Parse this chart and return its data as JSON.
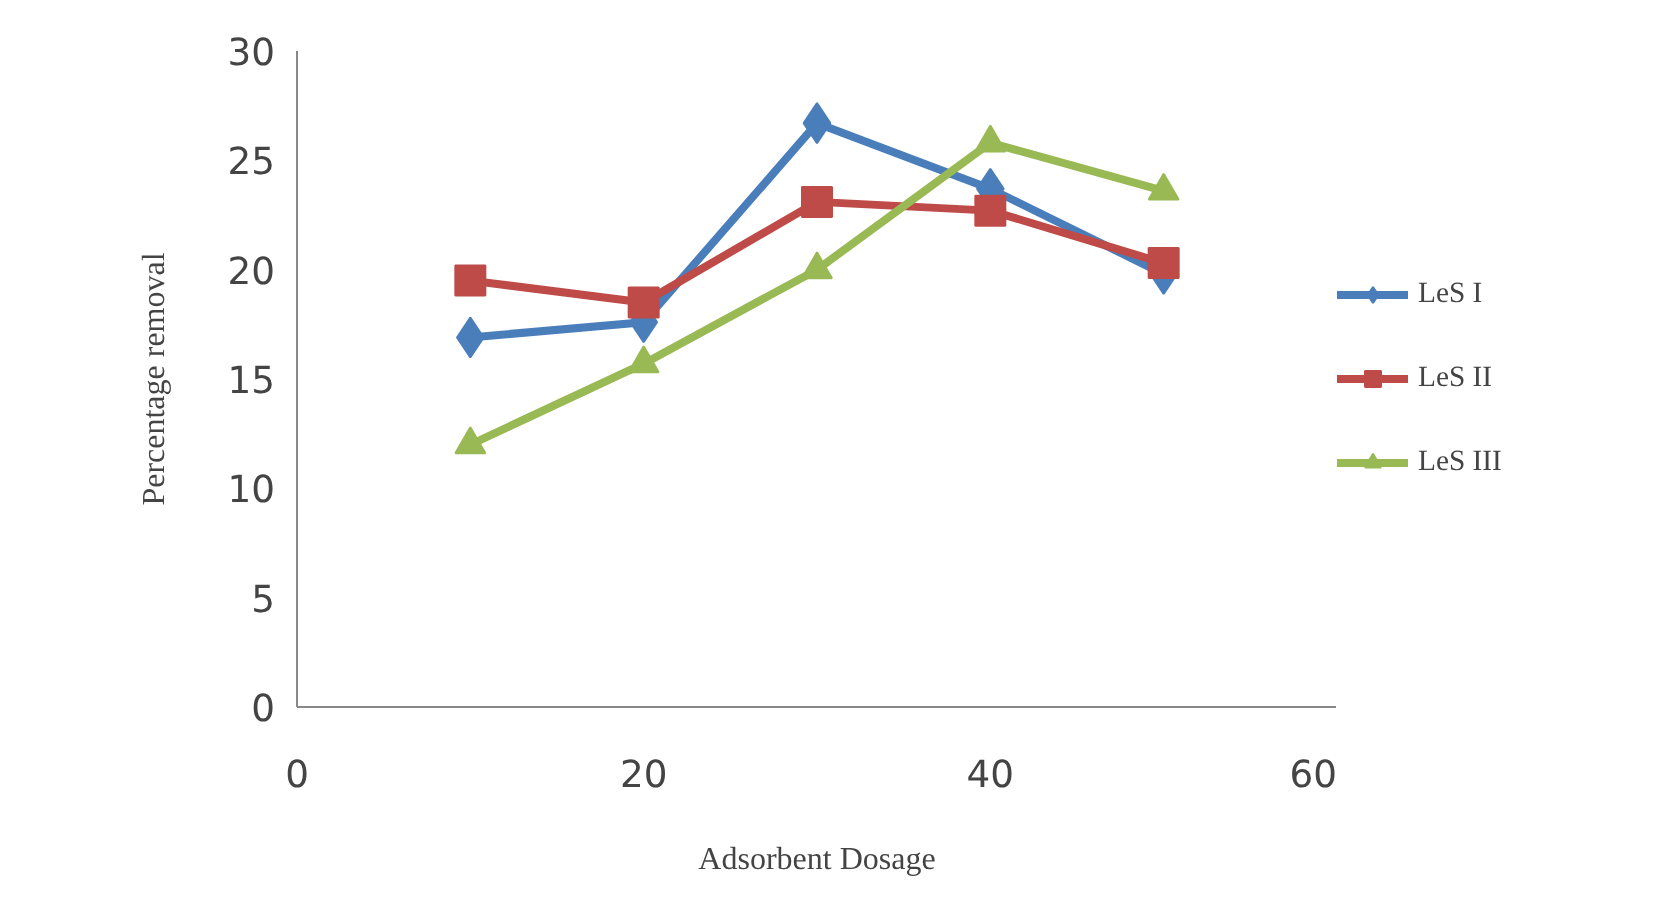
{
  "chart_data": {
    "type": "line",
    "xlabel": "Adsorbent Dosage",
    "ylabel": "Percentage removal",
    "x": [
      10,
      20,
      30,
      40,
      50
    ],
    "xlim": [
      0,
      60
    ],
    "xticks": [
      0,
      20,
      40,
      60
    ],
    "ylim": [
      0,
      30
    ],
    "yticks": [
      0,
      5,
      10,
      15,
      20,
      25,
      30
    ],
    "grid": false,
    "legend": "right",
    "series": [
      {
        "name": "LeS I",
        "color": "#4a7ebb",
        "marker": "diamond",
        "values": [
          16.9,
          17.6,
          26.7,
          23.7,
          19.8
        ]
      },
      {
        "name": "LeS II",
        "color": "#be4b48",
        "marker": "square",
        "values": [
          19.5,
          18.5,
          23.1,
          22.7,
          20.3
        ]
      },
      {
        "name": "LeS III",
        "color": "#98b954",
        "marker": "triangle",
        "values": [
          12.0,
          15.7,
          20.0,
          25.8,
          23.6
        ]
      }
    ]
  }
}
